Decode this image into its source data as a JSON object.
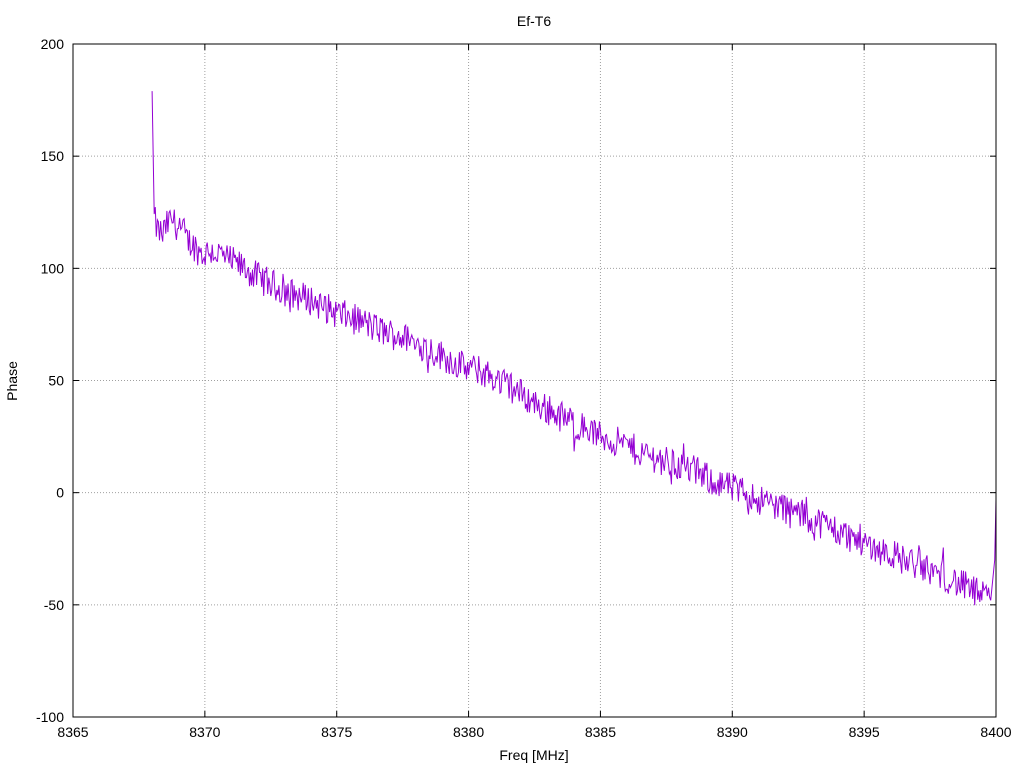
{
  "chart_data": {
    "type": "line",
    "title": "Ef-T6",
    "xlabel": "Freq [MHz]",
    "ylabel": "Phase",
    "xlim": [
      8365,
      8400
    ],
    "ylim": [
      -100,
      200
    ],
    "xticks": [
      8365,
      8370,
      8375,
      8380,
      8385,
      8390,
      8395,
      8400
    ],
    "yticks": [
      -100,
      -50,
      0,
      50,
      100,
      150,
      200
    ],
    "grid": true,
    "series": [
      {
        "color": "#9400d3",
        "x": [
          8368.0,
          8368.04,
          8368.08,
          8368.2,
          8368.4,
          8368.6,
          8368.8,
          8369.0,
          8369.3,
          8369.6,
          8369.9,
          8370.2,
          8370.6,
          8371.0,
          8371.5,
          8372.0,
          8372.5,
          8373.0,
          8373.5,
          8374.0,
          8374.5,
          8375.0,
          8375.5,
          8376.0,
          8376.5,
          8377.0,
          8377.5,
          8378.0,
          8378.5,
          8379.0,
          8379.5,
          8380.0,
          8380.5,
          8381.0,
          8381.5,
          8382.0,
          8382.5,
          8383.0,
          8383.5,
          8384.0,
          8384.5,
          8385.0,
          8385.5,
          8386.0,
          8386.5,
          8387.0,
          8387.5,
          8388.0,
          8388.5,
          8389.0,
          8389.5,
          8390.0,
          8390.5,
          8391.0,
          8391.5,
          8392.0,
          8392.5,
          8393.0,
          8393.5,
          8394.0,
          8394.5,
          8395.0,
          8395.5,
          8396.0,
          8396.5,
          8397.0,
          8397.5,
          8398.0,
          8398.5,
          8399.0,
          8399.5,
          8399.8,
          8399.95,
          8400.0
        ],
        "y": [
          179,
          150,
          122,
          117,
          115,
          120,
          122,
          118,
          113,
          110,
          106,
          108,
          106,
          103,
          100,
          96,
          93,
          90,
          88,
          86,
          83,
          80,
          78,
          76,
          73,
          71,
          69,
          67,
          64,
          61,
          58,
          55,
          54,
          51,
          48,
          44,
          40,
          37,
          34,
          31,
          28,
          25,
          23,
          21,
          18,
          16,
          14,
          12,
          10,
          7,
          4,
          2,
          0,
          -3,
          -5,
          -7,
          -9,
          -12,
          -14,
          -17,
          -20,
          -22,
          -25,
          -27,
          -30,
          -32,
          -35,
          -37,
          -40,
          -43,
          -46,
          -48,
          -30,
          -3
        ]
      }
    ]
  }
}
